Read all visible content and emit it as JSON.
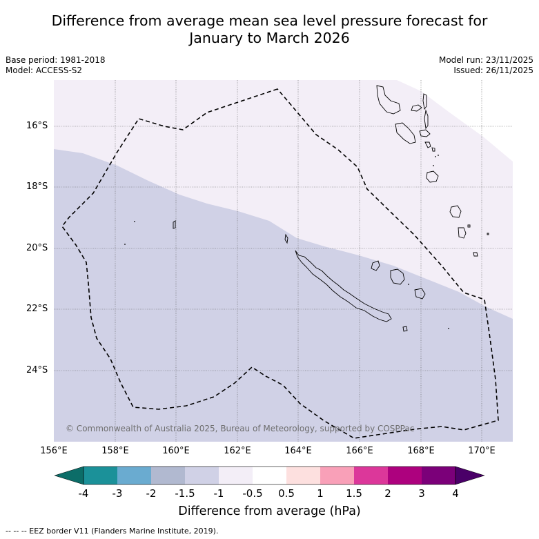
{
  "title": {
    "line1": "Difference from average mean sea level pressure forecast for",
    "line2": "January to March 2026"
  },
  "meta": {
    "base_period": "Base period: 1981-2018",
    "model": "Model: ACCESS-S2",
    "model_run": "Model run: 23/11/2025",
    "issued": "Issued: 26/11/2025"
  },
  "map": {
    "region": "New Caledonia and Vanuatu area",
    "lat_labels": [
      "16°S",
      "18°S",
      "20°S",
      "22°S",
      "24°S"
    ],
    "lon_labels": [
      "156°E",
      "158°E",
      "160°E",
      "162°E",
      "164°E",
      "166°E",
      "168°E",
      "170°E"
    ],
    "copyright": "© Commonwealth of Australia 2025, Bureau of Meteorology, supported by COSPPac",
    "anomaly_categories": [
      {
        "range": "-1.5 to -1",
        "color": "#d0d1e6"
      },
      {
        "range": "-1 to -0.5",
        "color": "#f3eef7"
      }
    ]
  },
  "colorbar": {
    "title": "Difference from average (hPa)",
    "tick_labels": [
      "-4",
      "-3",
      "-2",
      "-1.5",
      "-1",
      "-0.5",
      "0.5",
      "1",
      "1.5",
      "2",
      "3",
      "4"
    ],
    "colors": [
      "#0c6d68",
      "#1b9199",
      "#6aabd0",
      "#b1b9d0",
      "#d0d1e6",
      "#f3eef7",
      "#ffffff",
      "#fde0df",
      "#f9a0b8",
      "#dc379a",
      "#ad017e",
      "#7b0079",
      "#4a0068"
    ]
  },
  "legend_footer": "--  --  -- EEZ border V11 (Flanders Marine Institute, 2019)."
}
